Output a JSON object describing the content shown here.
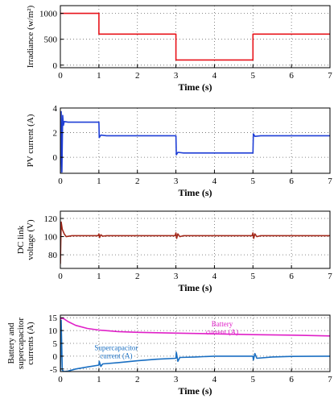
{
  "colors": {
    "irradiance": "#e8141b",
    "pv_current": "#1f3fd6",
    "dc_link": "#a3281a",
    "battery": "#e020c8",
    "supercapacitor": "#1a6fc2",
    "grid": "#666666",
    "frame": "#000000"
  },
  "chart_data": [
    {
      "type": "line",
      "xlabel": "Time (s)",
      "ylabel": [
        "Irradiance (w/m²)"
      ],
      "xlim": [
        0,
        7
      ],
      "ylim": [
        -50,
        1150
      ],
      "xticks": [
        "0",
        "1",
        "2",
        "3",
        "4",
        "5",
        "6",
        "7"
      ],
      "yticks": [
        {
          "v": 0,
          "label": "0"
        },
        {
          "v": 500,
          "label": "500"
        },
        {
          "v": 1000,
          "label": "1000"
        }
      ],
      "grid": "dotted",
      "series": [
        {
          "color_key": "irradiance",
          "x": [
            0,
            1,
            1,
            3,
            3,
            5,
            5,
            7
          ],
          "y": [
            1000,
            1000,
            600,
            600,
            100,
            100,
            600,
            600
          ]
        }
      ]
    },
    {
      "type": "line",
      "xlabel": "Time (s)",
      "ylabel": [
        "PV current (A)"
      ],
      "xlim": [
        0,
        7
      ],
      "ylim": [
        -1.3,
        4
      ],
      "xticks": [
        "0",
        "1",
        "2",
        "3",
        "4",
        "5",
        "6",
        "7"
      ],
      "yticks": [
        {
          "v": 0,
          "label": "0"
        },
        {
          "v": 2,
          "label": "2"
        },
        {
          "v": 4,
          "label": "4"
        }
      ],
      "grid": "dotted",
      "series": [
        {
          "color_key": "pv_current",
          "x": [
            0,
            0.02,
            0.04,
            0.06,
            0.08,
            0.1,
            0.2,
            0.4,
            0.7,
            0.99,
            1.0,
            1.01,
            1.05,
            1.2,
            2.0,
            2.99,
            3.0,
            3.01,
            3.05,
            3.2,
            4.0,
            4.99,
            5.0,
            5.01,
            5.05,
            5.2,
            6.0,
            7.0
          ],
          "y": [
            -1.3,
            3.7,
            -1.2,
            3.4,
            2.6,
            2.9,
            2.85,
            2.85,
            2.85,
            2.85,
            2.85,
            1.6,
            1.8,
            1.75,
            1.75,
            1.75,
            1.75,
            0.2,
            0.4,
            0.35,
            0.35,
            0.35,
            0.35,
            1.9,
            1.7,
            1.75,
            1.75,
            1.75
          ]
        }
      ]
    },
    {
      "type": "line",
      "xlabel": "Time (s)",
      "ylabel": [
        "DC link",
        "voltage (V)"
      ],
      "xlim": [
        0,
        7
      ],
      "ylim": [
        65,
        128
      ],
      "xticks": [
        "0",
        "1",
        "2",
        "3",
        "4",
        "5",
        "6",
        "7"
      ],
      "yticks": [
        {
          "v": 80,
          "label": "80"
        },
        {
          "v": 100,
          "label": "100"
        },
        {
          "v": 120,
          "label": "120"
        }
      ],
      "grid": "dotted",
      "series": [
        {
          "color_key": "dc_link",
          "x": [
            0,
            0.02,
            0.05,
            0.1,
            0.15,
            0.3,
            0.5,
            0.98,
            1.0,
            1.02,
            1.05,
            1.1,
            1.2,
            2.98,
            3.0,
            3.02,
            3.05,
            3.1,
            3.2,
            4.98,
            5.0,
            5.02,
            5.05,
            5.1,
            5.2,
            7.0
          ],
          "y": [
            70,
            116,
            108,
            103,
            100,
            101,
            101,
            101,
            103,
            99,
            102,
            100.5,
            101,
            101,
            104,
            98,
            103,
            100,
            101,
            101,
            104,
            98,
            103,
            100,
            101,
            101
          ]
        }
      ]
    },
    {
      "type": "line",
      "xlabel": "Time (s)",
      "ylabel": [
        "Battery and",
        "supercapacitor",
        "currents (A)"
      ],
      "xlim": [
        0,
        7
      ],
      "ylim": [
        -6,
        16
      ],
      "xticks": [
        "0",
        "1",
        "2",
        "3",
        "4",
        "5",
        "6",
        "7"
      ],
      "yticks": [
        {
          "v": -5,
          "label": "-5"
        },
        {
          "v": 0,
          "label": "0"
        },
        {
          "v": 5,
          "label": "5"
        },
        {
          "v": 10,
          "label": "10"
        },
        {
          "v": 15,
          "label": "15"
        }
      ],
      "grid": "dotted",
      "series": [
        {
          "name": "Battery current (A)",
          "color_key": "battery",
          "x": [
            0,
            0.05,
            0.1,
            0.2,
            0.4,
            0.7,
            1.0,
            1.5,
            2.0,
            3.0,
            4.0,
            5.0,
            6.0,
            7.0
          ],
          "y": [
            14.5,
            14.8,
            14.5,
            13.5,
            12.0,
            10.8,
            10.2,
            9.6,
            9.3,
            9.0,
            8.7,
            8.4,
            8.2,
            7.9
          ]
        },
        {
          "name": "Supercapacitor current (A)",
          "color_key": "supercapacitor",
          "x": [
            0,
            0.02,
            0.05,
            0.1,
            0.2,
            0.4,
            0.7,
            1.0,
            1.01,
            1.05,
            1.1,
            1.5,
            2.0,
            2.5,
            3.0,
            3.01,
            3.05,
            3.1,
            3.5,
            4.0,
            5.0,
            5.01,
            5.05,
            5.1,
            5.5,
            6.0,
            7.0
          ],
          "y": [
            -6,
            14,
            -5.5,
            -6,
            -5.8,
            -5,
            -4.2,
            -3.5,
            -2,
            -4,
            -3,
            -2.5,
            -1.8,
            -1.2,
            -0.8,
            1.5,
            -2,
            -0.5,
            -0.3,
            0,
            0,
            -1.5,
            1,
            -0.8,
            -0.3,
            -0.1,
            0
          ]
        }
      ],
      "annotations": [
        {
          "lines": [
            "Battery",
            "current (A)"
          ],
          "color_key": "battery",
          "x": 4.2,
          "y": 11.6
        },
        {
          "lines": [
            "Supercapacitor",
            "current (A)"
          ],
          "color_key": "supercapacitor",
          "x": 1.45,
          "y": 2.4
        }
      ]
    }
  ]
}
